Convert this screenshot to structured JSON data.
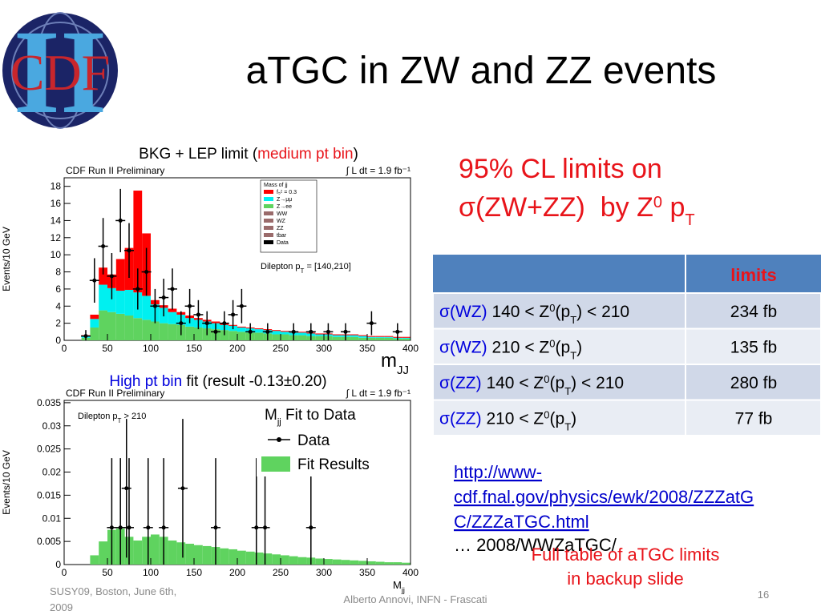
{
  "logo": {
    "letters": "CDF",
    "numeral": "II"
  },
  "title": "aTGC in ZW and ZZ events",
  "captions": {
    "top": [
      "BKG + LEP limit (",
      "medium pt bin",
      ")"
    ],
    "bottom": [
      "High pt bin",
      " fit (result -0.13±0.20)"
    ]
  },
  "heading": {
    "line1": "95% CL limits on",
    "line2": [
      "σ",
      "(ZW+ZZ)  by Z",
      "0",
      " p",
      "T"
    ]
  },
  "table": {
    "header": "limits",
    "rows": [
      {
        "process": "σ(WZ)",
        "cut": [
          "140 < Z",
          "0",
          "(p",
          "T",
          ") < 210"
        ],
        "limit": "234 fb"
      },
      {
        "process": "σ(WZ)",
        "cut": [
          "210 < Z",
          "0",
          "(p",
          "T",
          ")"
        ],
        "limit": "135 fb"
      },
      {
        "process": "σ(ZZ)",
        "cut": [
          "140 < Z",
          "0",
          "(p",
          "T",
          ") < 210"
        ],
        "limit": "280 fb"
      },
      {
        "process": "σ(ZZ)",
        "cut": [
          "210 < Z",
          "0",
          "(p",
          "T",
          ")"
        ],
        "limit": "77 fb"
      }
    ]
  },
  "link": [
    "http://www-",
    "cdf.fnal.gov/physics/ewk/2008/ZZZatG",
    "C/ZZZaTGC.html"
  ],
  "link_note": "… 2008/WWZaTGC/",
  "backup_note": [
    "Full table of aTGC limits",
    "in backup slide"
  ],
  "footer": {
    "left": [
      "SUSY09, Boston, June 6th,",
      "2009"
    ],
    "center": "Alberto Annovi, INFN - Frascati",
    "page": "16"
  },
  "chart_data": [
    {
      "type": "histogram",
      "label": "CDF Run II Preliminary",
      "luminosity": "∫ L dt = 1.9 fb⁻¹",
      "annotation": [
        "Dilepton p",
        "T",
        " = [140,210]"
      ],
      "ylabel": "Events/10 GeV",
      "xlabel": [
        "m",
        "JJ"
      ],
      "legend_title": "Mass of jj",
      "legend_extra": [
        "WW",
        "WZ",
        "ZZ",
        "tbar"
      ],
      "bins": [
        20,
        30,
        40,
        50,
        60,
        70,
        80,
        90,
        100,
        110,
        120,
        130,
        140,
        150,
        160,
        170,
        180,
        190,
        200,
        210,
        220,
        230,
        240,
        250,
        260,
        270,
        280,
        290,
        300,
        310,
        320,
        330,
        340,
        350,
        360,
        370,
        380,
        390,
        400
      ],
      "series": [
        {
          "name": "Z→ee",
          "color": "#5fd35f",
          "values": [
            0.3,
            1.5,
            3.5,
            3.3,
            3.1,
            2.9,
            2.6,
            2.4,
            2.2,
            2.0,
            1.9,
            1.8,
            1.6,
            1.5,
            1.4,
            1.3,
            1.2,
            1.1,
            1.0,
            0.9,
            0.9,
            0.8,
            0.7,
            0.7,
            0.6,
            0.6,
            0.5,
            0.5,
            0.5,
            0.4,
            0.4,
            0.4,
            0.3,
            0.3,
            0.3,
            0.3,
            0.2,
            0.2
          ]
        },
        {
          "name": "Z→μμ",
          "color": "#00f0f0",
          "values": [
            0.2,
            1.0,
            3.0,
            2.8,
            2.7,
            3.0,
            3.0,
            2.8,
            2.0,
            1.8,
            1.4,
            1.2,
            1.0,
            0.9,
            0.8,
            0.7,
            0.6,
            0.6,
            0.5,
            0.5,
            0.4,
            0.4,
            0.4,
            0.3,
            0.3,
            0.3,
            0.3,
            0.2,
            0.2,
            0.2,
            0.2,
            0.2,
            0.2,
            0.1,
            0.1,
            0.1,
            0.1,
            0.1
          ]
        },
        {
          "name": "f₅ᶻ = 0.3",
          "color": "#ff0000",
          "values": [
            0.1,
            0.5,
            2.0,
            1.6,
            3.7,
            4.9,
            11.9,
            7.3,
            0.5,
            0.3,
            0.4,
            0.3,
            0.3,
            0.2,
            0.2,
            0.2,
            0.2,
            0.1,
            0.1,
            0.1,
            0.1,
            0.1,
            0.1,
            0.1,
            0.1,
            0.1,
            0.1,
            0.1,
            0.1,
            0.1,
            0.1,
            0.1,
            0.1,
            0.1,
            0.1,
            0.1,
            0.1,
            0.1
          ]
        }
      ],
      "data": {
        "name": "Data",
        "color": "#000000",
        "x": [
          25,
          35,
          45,
          55,
          65,
          75,
          85,
          95,
          105,
          115,
          125,
          135,
          145,
          155,
          165,
          175,
          185,
          195,
          205,
          215,
          235,
          265,
          285,
          305,
          325,
          355,
          385
        ],
        "values": [
          0.5,
          7,
          11,
          7.5,
          14,
          10.5,
          6,
          8,
          4,
          5,
          6,
          2,
          4,
          3,
          2,
          1,
          2,
          3,
          4,
          1,
          1,
          1,
          1,
          1,
          1,
          2,
          1
        ],
        "errors": [
          0.7,
          2.6,
          3.3,
          2.7,
          3.7,
          3.2,
          2.4,
          2.8,
          2,
          2.2,
          2.4,
          1.4,
          2,
          1.7,
          1.4,
          1,
          1.4,
          1.7,
          2,
          1,
          1,
          1,
          1,
          1,
          1,
          1.4,
          1
        ]
      },
      "xlim": [
        0,
        400
      ],
      "xticks": [
        0,
        50,
        100,
        150,
        200,
        250,
        300,
        350,
        400
      ],
      "ylim": [
        0,
        19
      ],
      "yticks": [
        0,
        2,
        4,
        6,
        8,
        10,
        12,
        14,
        16,
        18
      ]
    },
    {
      "type": "histogram",
      "label": "CDF Run II Preliminary",
      "luminosity": "∫ L dt = 1.9 fb⁻¹",
      "annotation": [
        "Dilepton p",
        "T",
        " > 210"
      ],
      "ylabel": "Events/10 GeV",
      "xlabel": [
        "M",
        "jj"
      ],
      "legend_title": [
        "M",
        "jj",
        " Fit to Data"
      ],
      "bins": [
        30,
        40,
        50,
        60,
        70,
        80,
        90,
        100,
        110,
        120,
        130,
        140,
        150,
        160,
        170,
        180,
        190,
        200,
        210,
        220,
        230,
        240,
        250,
        260,
        270,
        280,
        290,
        300,
        310,
        320,
        330,
        340,
        350,
        360,
        370,
        380,
        390,
        400
      ],
      "series": [
        {
          "name": "Fit Results",
          "color": "#5fd35f",
          "values": [
            0.002,
            0.005,
            0.0075,
            0.0078,
            0.006,
            0.0052,
            0.006,
            0.0065,
            0.006,
            0.0052,
            0.0048,
            0.0045,
            0.0042,
            0.004,
            0.0038,
            0.0035,
            0.0033,
            0.003,
            0.0028,
            0.0026,
            0.0024,
            0.0022,
            0.002,
            0.0018,
            0.0016,
            0.0015,
            0.0013,
            0.0012,
            0.0011,
            0.001,
            0.0009,
            0.0008,
            0.0007,
            0.0006,
            0.0005,
            0.0005,
            0.0004
          ]
        }
      ],
      "data": {
        "name": "Data",
        "color": "#000000",
        "x": [
          55,
          65,
          72,
          75,
          97,
          115,
          137,
          175,
          222,
          232,
          285
        ],
        "values": [
          0.008,
          0.008,
          0.0165,
          0.008,
          0.008,
          0.008,
          0.0165,
          0.008,
          0.008,
          0.008,
          0.008
        ],
        "errors": [
          0.015,
          0.015,
          0.015,
          0.015,
          0.015,
          0.015,
          0.015,
          0.015,
          0.015,
          0.015,
          0.015
        ]
      },
      "xlim": [
        0,
        400
      ],
      "xticks": [
        0,
        50,
        100,
        150,
        200,
        250,
        300,
        350,
        400
      ],
      "ylim": [
        0,
        0.0355
      ],
      "yticks": [
        0,
        0.005,
        0.01,
        0.015,
        0.02,
        0.025,
        0.03,
        0.035
      ]
    }
  ]
}
